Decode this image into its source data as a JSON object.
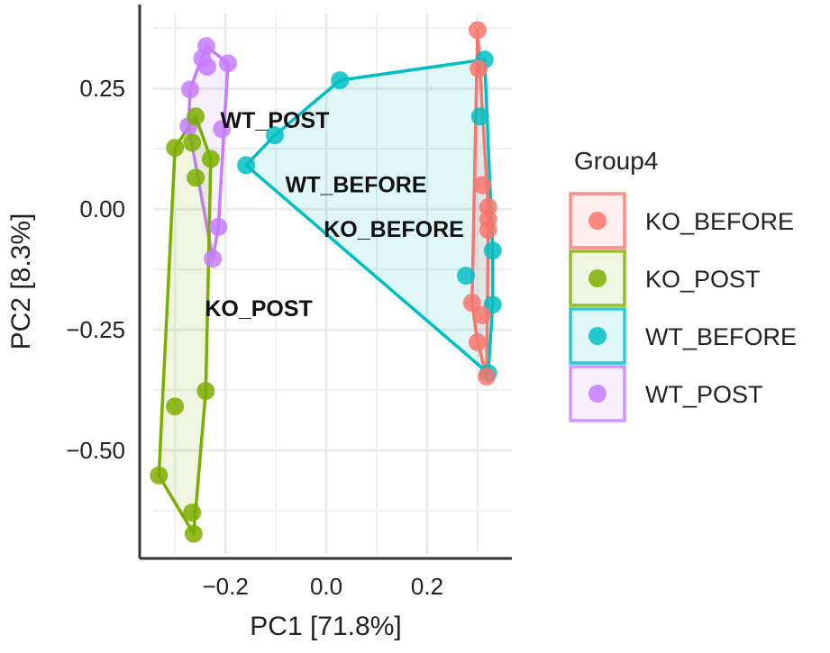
{
  "chart_data": {
    "type": "scatter",
    "title": "",
    "xlabel": "PC1 [71.8%]",
    "ylabel": "PC2 [8.3%]",
    "xlim": [
      -0.37,
      0.368
    ],
    "ylim": [
      -0.724,
      0.424
    ],
    "x_ticks": [
      {
        "value": -0.2,
        "label": "−0.2"
      },
      {
        "value": 0.0,
        "label": "0.0"
      },
      {
        "value": 0.2,
        "label": "0.2"
      }
    ],
    "y_ticks": [
      {
        "value": 0.25,
        "label": "0.25"
      },
      {
        "value": 0.0,
        "label": "0.00"
      },
      {
        "value": -0.25,
        "label": "−0.25"
      },
      {
        "value": -0.5,
        "label": "−0.50"
      }
    ],
    "x_minor_grid": [
      -0.3,
      -0.1,
      0.1,
      0.3
    ],
    "y_minor_grid": [
      0.375,
      0.125,
      -0.125,
      -0.375,
      -0.625
    ],
    "grid": true,
    "hull_polygons": true,
    "legend": {
      "title": "Group4",
      "position": "right"
    },
    "series": [
      {
        "name": "KO_BEFORE",
        "color": "#F8766D",
        "fill": "#F8766D",
        "label_pos": [
          0.134,
          -0.041
        ],
        "points": [
          [
            0.3,
            0.371
          ],
          [
            0.302,
            0.291
          ],
          [
            0.309,
            0.05
          ],
          [
            0.321,
            0.004
          ],
          [
            0.321,
            -0.021
          ],
          [
            0.321,
            -0.043
          ],
          [
            0.289,
            -0.194
          ],
          [
            0.309,
            -0.22
          ],
          [
            0.3,
            -0.276
          ],
          [
            0.318,
            -0.347
          ]
        ]
      },
      {
        "name": "KO_POST",
        "color": "#7CAE00",
        "fill": "#7CAE00",
        "label_pos": [
          -0.134,
          -0.205
        ],
        "points": [
          [
            -0.259,
            0.192
          ],
          [
            -0.3,
            0.127
          ],
          [
            -0.266,
            0.138
          ],
          [
            -0.229,
            0.104
          ],
          [
            -0.259,
            0.065
          ],
          [
            -0.239,
            -0.377
          ],
          [
            -0.3,
            -0.409
          ],
          [
            -0.332,
            -0.552
          ],
          [
            -0.266,
            -0.629
          ],
          [
            -0.263,
            -0.673
          ]
        ]
      },
      {
        "name": "WT_BEFORE",
        "color": "#00BFC4",
        "fill": "#00BFC4",
        "label_pos": [
          0.059,
          0.052
        ],
        "points": [
          [
            0.027,
            0.267
          ],
          [
            -0.102,
            0.153
          ],
          [
            -0.159,
            0.091
          ],
          [
            0.314,
            0.31
          ],
          [
            0.305,
            0.192
          ],
          [
            0.33,
            -0.086
          ],
          [
            0.277,
            -0.138
          ],
          [
            0.33,
            -0.198
          ],
          [
            0.321,
            -0.34
          ]
        ]
      },
      {
        "name": "WT_POST",
        "color": "#C77CFF",
        "fill": "#C77CFF",
        "label_pos": [
          -0.102,
          0.185
        ],
        "points": [
          [
            -0.238,
            0.338
          ],
          [
            -0.246,
            0.312
          ],
          [
            -0.236,
            0.295
          ],
          [
            -0.195,
            0.302
          ],
          [
            -0.27,
            0.248
          ],
          [
            -0.273,
            0.172
          ],
          [
            -0.207,
            0.166
          ],
          [
            -0.214,
            -0.037
          ],
          [
            -0.225,
            -0.103
          ]
        ]
      }
    ]
  }
}
